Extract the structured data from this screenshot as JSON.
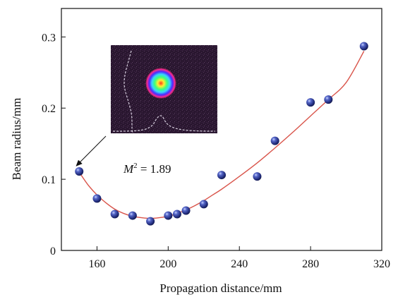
{
  "chart_data": {
    "type": "scatter",
    "xlabel": "Propagation distance/mm",
    "ylabel": "Beam radius/mm",
    "xlim": [
      140,
      320
    ],
    "ylim": [
      0,
      0.34
    ],
    "xticks": [
      160,
      200,
      240,
      280,
      320
    ],
    "yticks": [
      0,
      0.1,
      0.2,
      0.3
    ],
    "grid": false,
    "series": [
      {
        "marker": "sphere",
        "color": "#2b3a8c",
        "x": [
          150,
          160,
          170,
          180,
          190,
          200,
          205,
          210,
          220,
          230,
          250,
          260,
          280,
          290,
          310
        ],
        "y": [
          0.111,
          0.073,
          0.051,
          0.049,
          0.041,
          0.049,
          0.051,
          0.056,
          0.065,
          0.106,
          0.104,
          0.154,
          0.208,
          0.212,
          0.287
        ]
      }
    ],
    "fit_curve": {
      "color": "#d9544a",
      "x": [
        150,
        155,
        160,
        165,
        170,
        175,
        180,
        185,
        190,
        195,
        200,
        205,
        210,
        215,
        220,
        225,
        230,
        240,
        250,
        260,
        270,
        280,
        290,
        300,
        310
      ],
      "y": [
        0.11,
        0.092,
        0.078,
        0.067,
        0.058,
        0.052,
        0.048,
        0.046,
        0.045,
        0.046,
        0.048,
        0.052,
        0.057,
        0.063,
        0.07,
        0.078,
        0.086,
        0.104,
        0.123,
        0.144,
        0.166,
        0.189,
        0.212,
        0.236,
        0.28
      ]
    },
    "annotation": {
      "m_symbol": "M",
      "superscript": "2",
      "value_text": " = 1.89",
      "arrow_to_x": 150,
      "arrow_to_y": 0.111
    },
    "inset": {
      "description_colors": [
        "#2a1830",
        "#3a2a40",
        "#ff2a8a",
        "#4a2cff",
        "#39d4ff",
        "#3cff7a",
        "#ffee33",
        "#ff3a1a"
      ]
    }
  }
}
